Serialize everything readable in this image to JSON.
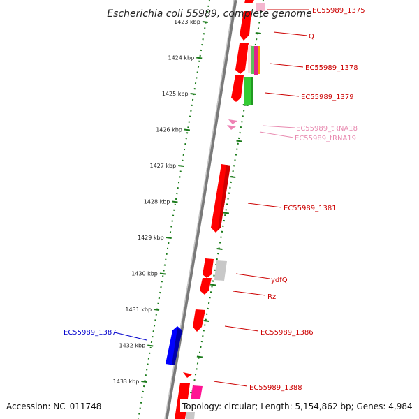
{
  "title": "Escherichia coli 55989, complete genome",
  "footer": {
    "accession": "Accession: NC_011748",
    "topology": "Topology: circular; Length: 5,154,862 bp; Genes: 4,984"
  },
  "colors": {
    "backbone": "#808080",
    "tick": "#1a7a1a",
    "forward": "#ff0000",
    "reverse": "#0000ff",
    "trna": "#ee82b4",
    "label_red": "#cc0000",
    "label_pink": "#e88ab0",
    "label_blue": "#0000cc"
  },
  "scale_ticks": [
    {
      "label": "1423 kbp"
    },
    {
      "label": "1424 kbp"
    },
    {
      "label": "1425 kbp"
    },
    {
      "label": "1426 kbp"
    },
    {
      "label": "1427 kbp"
    },
    {
      "label": "1428 kbp"
    },
    {
      "label": "1429 kbp"
    },
    {
      "label": "1430 kbp"
    },
    {
      "label": "1431 kbp"
    },
    {
      "label": "1432 kbp"
    },
    {
      "label": "1433 kbp"
    }
  ],
  "gene_labels": [
    {
      "text": "EC55989_1375",
      "color": "label_red"
    },
    {
      "text": "Q",
      "color": "label_red"
    },
    {
      "text": "EC55989_1378",
      "color": "label_red"
    },
    {
      "text": "EC55989_1379",
      "color": "label_red"
    },
    {
      "text": "EC55989_tRNA18",
      "color": "label_pink"
    },
    {
      "text": "EC55989_tRNA19",
      "color": "label_pink"
    },
    {
      "text": "EC55989_1381",
      "color": "label_red"
    },
    {
      "text": "ydfQ",
      "color": "label_red"
    },
    {
      "text": "Rz",
      "color": "label_red"
    },
    {
      "text": "EC55989_1386",
      "color": "label_red"
    },
    {
      "text": "EC55989_1387",
      "color": "label_blue"
    },
    {
      "text": "EC55989_1388",
      "color": "label_red"
    }
  ]
}
